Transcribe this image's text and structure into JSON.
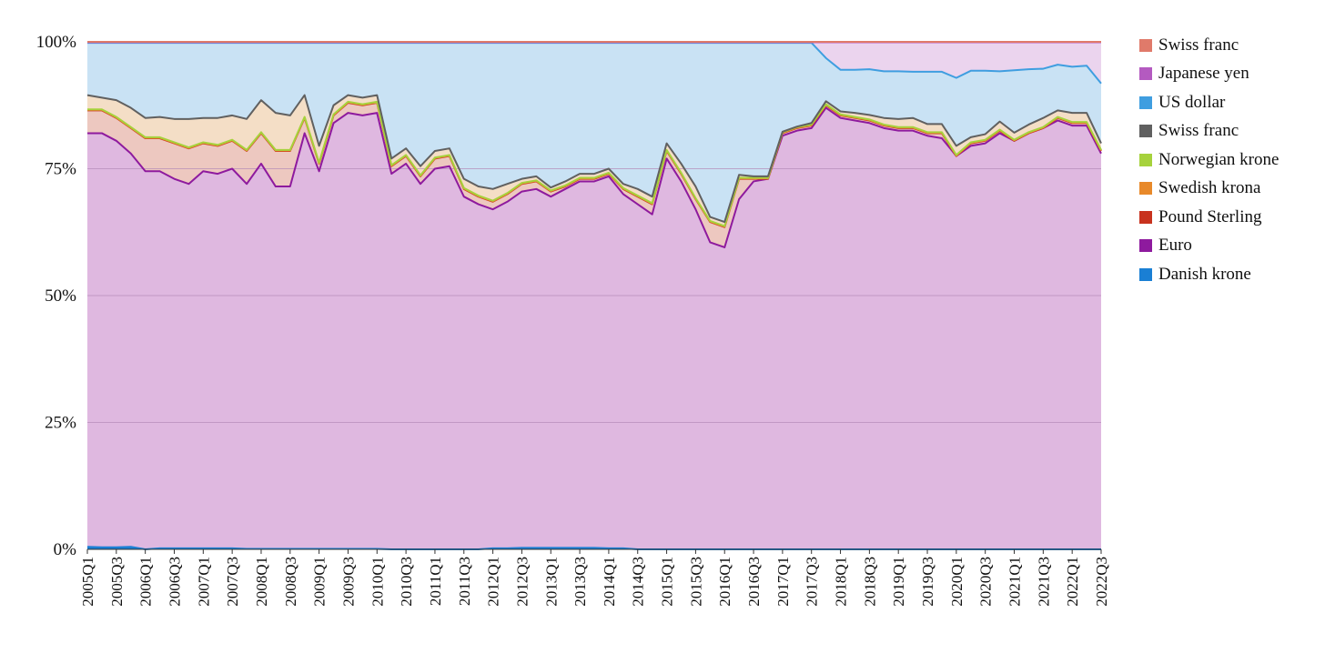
{
  "chart_data": {
    "type": "area",
    "stacked": true,
    "normalized": true,
    "title": "",
    "xlabel": "",
    "ylabel": "",
    "ylim": [
      0,
      100
    ],
    "y_ticks": [
      "0%",
      "25%",
      "50%",
      "75%",
      "100%"
    ],
    "x_tick_labels": [
      "2005Q1",
      "2005Q3",
      "2006Q1",
      "2006Q3",
      "2007Q1",
      "2007Q3",
      "2008Q1",
      "2008Q3",
      "2009Q1",
      "2009Q3",
      "2010Q1",
      "2010Q3",
      "2011Q1",
      "2011Q3",
      "2012Q1",
      "2012Q3",
      "2013Q1",
      "2013Q3",
      "2014Q1",
      "2014Q3",
      "2015Q1",
      "2015Q3",
      "2016Q1",
      "2016Q3",
      "2017Q1",
      "2017Q3",
      "2018Q1",
      "2018Q3",
      "2019Q1",
      "2019Q3",
      "2020Q1",
      "2020Q3",
      "2021Q1",
      "2021Q3",
      "2022Q1",
      "2022Q3"
    ],
    "grid": "horizontal",
    "legend_position": "right",
    "x": [
      "2005Q1",
      "2005Q2",
      "2005Q3",
      "2005Q4",
      "2006Q1",
      "2006Q2",
      "2006Q3",
      "2006Q4",
      "2007Q1",
      "2007Q2",
      "2007Q3",
      "2007Q4",
      "2008Q1",
      "2008Q2",
      "2008Q3",
      "2008Q4",
      "2009Q1",
      "2009Q2",
      "2009Q3",
      "2009Q4",
      "2010Q1",
      "2010Q2",
      "2010Q3",
      "2010Q4",
      "2011Q1",
      "2011Q2",
      "2011Q3",
      "2011Q4",
      "2012Q1",
      "2012Q2",
      "2012Q3",
      "2012Q4",
      "2013Q1",
      "2013Q2",
      "2013Q3",
      "2013Q4",
      "2014Q1",
      "2014Q2",
      "2014Q3",
      "2014Q4",
      "2015Q1",
      "2015Q2",
      "2015Q3",
      "2015Q4",
      "2016Q1",
      "2016Q2",
      "2016Q3",
      "2016Q4",
      "2017Q1",
      "2017Q2",
      "2017Q3",
      "2017Q4",
      "2018Q1",
      "2018Q2",
      "2018Q3",
      "2018Q4",
      "2019Q1",
      "2019Q2",
      "2019Q3",
      "2019Q4",
      "2020Q1",
      "2020Q2",
      "2020Q3",
      "2020Q4",
      "2021Q1",
      "2021Q2",
      "2021Q3",
      "2021Q4",
      "2022Q1",
      "2022Q2",
      "2022Q3"
    ],
    "stack_order": [
      "Danish krone",
      "Euro",
      "Pound Sterling",
      "Swedish krona",
      "Norwegian krone",
      "Swiss franc (2)",
      "US dollar",
      "Japanese yen",
      "Swiss franc (1)"
    ],
    "series": [
      {
        "name": "Danish krone",
        "color": "#1a7fd4",
        "fill": "#1a7fd4",
        "cumulative": [
          0.5,
          0.4,
          0.4,
          0.5,
          0,
          0.2,
          0.2,
          0.2,
          0.2,
          0.2,
          0.2,
          0.1,
          0.1,
          0.1,
          0.1,
          0.1,
          0.1,
          0.1,
          0.1,
          0.1,
          0.1,
          0,
          0,
          0,
          0,
          0,
          0,
          0,
          0.2,
          0.2,
          0.3,
          0.3,
          0.3,
          0.3,
          0.3,
          0.3,
          0.2,
          0.2,
          0,
          0,
          0,
          0,
          0,
          0,
          0,
          0,
          0,
          0,
          0,
          0,
          0,
          0,
          0,
          0,
          0,
          0,
          0,
          0,
          0,
          0,
          0,
          0,
          0,
          0,
          0,
          0,
          0,
          0,
          0,
          0,
          0
        ]
      },
      {
        "name": "Euro",
        "color": "#8e1a9e",
        "fill": "#dfb8e0",
        "cumulative": [
          82,
          82,
          80.5,
          78,
          74.5,
          74.5,
          73,
          72,
          74.5,
          74,
          75,
          72,
          76,
          71.5,
          71.5,
          82,
          74.5,
          84,
          86,
          85.5,
          86,
          74,
          76,
          72,
          75,
          75.5,
          69.5,
          68,
          67,
          68.5,
          70.5,
          71,
          69.5,
          71,
          72.5,
          72.5,
          73.5,
          70,
          68,
          66,
          77,
          72.5,
          67,
          60.5,
          59.5,
          69,
          72.5,
          73,
          81.5,
          82.5,
          83,
          87,
          85,
          84.5,
          84,
          83,
          82.5,
          82.5,
          81.5,
          81,
          77.5,
          79.5,
          80,
          82,
          80.5,
          82,
          83,
          84.5,
          83.5,
          83.5,
          78
        ]
      },
      {
        "name": "Pound Sterling",
        "color": "#c8321e",
        "fill": "#edc8c0",
        "cumulative": [
          86.5,
          86.5,
          85,
          83,
          81,
          81,
          80,
          79,
          80,
          79.5,
          80.5,
          78.5,
          82,
          78.5,
          78.5,
          85,
          76,
          85.5,
          88,
          87.5,
          88,
          75.5,
          77.5,
          73.5,
          77,
          77.5,
          71,
          69.5,
          68.5,
          70,
          72,
          72.5,
          70.5,
          71.5,
          73,
          73,
          74,
          71,
          69.5,
          68,
          78.5,
          74,
          69,
          64.5,
          63.5,
          73,
          73,
          73,
          82,
          83,
          83.5,
          87.5,
          85.5,
          85,
          84.5,
          83.5,
          83,
          83,
          82,
          82,
          77.5,
          80,
          80.5,
          82.5,
          80.5,
          82,
          83,
          85,
          84,
          84,
          78.5
        ]
      },
      {
        "name": "Swedish krona",
        "color": "#e8892a",
        "fill": "#f3dac0",
        "cumulative": [
          86.6,
          86.6,
          85.1,
          83.1,
          81.1,
          81.1,
          80.1,
          79.1,
          80.1,
          79.6,
          80.6,
          78.6,
          82.1,
          78.6,
          78.6,
          85.1,
          76.1,
          85.6,
          88.1,
          87.6,
          88.1,
          75.6,
          77.6,
          73.6,
          77.1,
          77.6,
          71.1,
          69.6,
          68.6,
          70.1,
          72.1,
          72.6,
          70.6,
          71.6,
          73.1,
          73.1,
          74.1,
          71.1,
          69.6,
          68.1,
          78.6,
          74.1,
          69.1,
          64.6,
          63.6,
          73.1,
          73.1,
          73.1,
          82.1,
          83.1,
          83.6,
          87.6,
          85.6,
          85.1,
          84.6,
          83.6,
          83.1,
          83.1,
          82.1,
          82.1,
          77.6,
          80.1,
          80.6,
          82.6,
          80.6,
          82.1,
          83.1,
          85.1,
          84.1,
          84.1,
          78.6
        ]
      },
      {
        "name": "Norwegian krone",
        "color": "#a6d23c",
        "fill": "#e2efc8",
        "cumulative": [
          86.7,
          86.7,
          85.2,
          83.2,
          81.2,
          81.2,
          80.2,
          79.2,
          80.2,
          79.7,
          80.7,
          78.7,
          82.2,
          78.7,
          78.7,
          85.2,
          76.2,
          85.7,
          88.2,
          87.7,
          88.2,
          75.7,
          77.7,
          73.7,
          77.2,
          77.7,
          71.2,
          69.7,
          68.7,
          70.2,
          72.2,
          72.7,
          70.7,
          71.7,
          73.2,
          73.2,
          74.2,
          71.2,
          69.7,
          68.2,
          78.7,
          74.2,
          69.2,
          64.7,
          63.7,
          73.2,
          73.2,
          73.2,
          82.2,
          83.2,
          83.7,
          87.7,
          85.7,
          85.2,
          84.7,
          83.7,
          83.2,
          83.2,
          82.2,
          82.2,
          77.7,
          80.2,
          80.7,
          82.7,
          80.7,
          82.2,
          83.2,
          85.2,
          84.2,
          84.2,
          78.7
        ]
      },
      {
        "name": "Swiss franc (2)",
        "legend": "Swiss franc",
        "color": "#606060",
        "fill": "#f4deC6",
        "cumulative": [
          89.5,
          89,
          88.5,
          87,
          85,
          85.2,
          84.8,
          84.8,
          85,
          85,
          85.5,
          84.8,
          88.5,
          86,
          85.5,
          89.5,
          79.5,
          87.5,
          89.5,
          89,
          89.5,
          77,
          79,
          75.5,
          78.5,
          79,
          73,
          71.5,
          71,
          72,
          73,
          73.5,
          71.3,
          72.5,
          74,
          74,
          75,
          72,
          71,
          69.5,
          80,
          76,
          71.5,
          65.5,
          64.5,
          73.8,
          73.5,
          73.5,
          82.3,
          83.3,
          84,
          88.3,
          86.3,
          86,
          85.6,
          85,
          84.8,
          85,
          83.8,
          83.8,
          79.5,
          81.2,
          81.8,
          84.3,
          82.1,
          83.7,
          85,
          86.5,
          86,
          86,
          80
        ]
      },
      {
        "name": "US dollar",
        "color": "#3f9ee0",
        "fill": "#c9e2f4",
        "cumulative": [
          99.8,
          99.8,
          99.8,
          99.8,
          99.8,
          99.8,
          99.8,
          99.8,
          99.8,
          99.8,
          99.8,
          99.8,
          99.8,
          99.8,
          99.8,
          99.8,
          99.8,
          99.8,
          99.8,
          99.8,
          99.8,
          99.8,
          99.8,
          99.8,
          99.8,
          99.8,
          99.8,
          99.8,
          99.8,
          99.8,
          99.8,
          99.8,
          99.8,
          99.8,
          99.8,
          99.8,
          99.8,
          99.8,
          99.8,
          99.8,
          99.8,
          99.8,
          99.8,
          99.8,
          99.8,
          99.8,
          99.8,
          99.8,
          99.8,
          99.8,
          99.8,
          96.8,
          94.5,
          94.5,
          94.6,
          94.2,
          94.2,
          94.1,
          94.1,
          94.1,
          92.9,
          94.3,
          94.3,
          94.2,
          94.4,
          94.6,
          94.7,
          95.5,
          95.1,
          95.3,
          91.8
        ]
      },
      {
        "name": "Japanese yen",
        "color": "#b45ac0",
        "fill": "#ebd4ee",
        "cumulative": [
          99.9,
          99.9,
          99.9,
          99.9,
          99.9,
          99.9,
          99.9,
          99.9,
          99.9,
          99.9,
          99.9,
          99.9,
          99.9,
          99.9,
          99.9,
          99.9,
          99.9,
          99.9,
          99.9,
          99.9,
          99.9,
          99.9,
          99.9,
          99.9,
          99.9,
          99.9,
          99.9,
          99.9,
          99.9,
          99.9,
          99.9,
          99.9,
          99.9,
          99.9,
          99.9,
          99.9,
          99.9,
          99.9,
          99.9,
          99.9,
          99.9,
          99.9,
          99.9,
          99.9,
          99.9,
          99.9,
          99.9,
          99.9,
          99.9,
          99.9,
          99.9,
          99.9,
          99.9,
          99.9,
          99.9,
          99.9,
          99.9,
          99.9,
          99.9,
          99.9,
          99.9,
          99.9,
          99.9,
          99.9,
          99.9,
          99.9,
          99.9,
          99.9,
          99.9,
          99.9,
          99.9
        ]
      },
      {
        "name": "Swiss franc (1)",
        "legend": "Swiss franc",
        "color": "#e07a6a",
        "fill": "#f2c8c0",
        "cumulative": [
          100,
          100,
          100,
          100,
          100,
          100,
          100,
          100,
          100,
          100,
          100,
          100,
          100,
          100,
          100,
          100,
          100,
          100,
          100,
          100,
          100,
          100,
          100,
          100,
          100,
          100,
          100,
          100,
          100,
          100,
          100,
          100,
          100,
          100,
          100,
          100,
          100,
          100,
          100,
          100,
          100,
          100,
          100,
          100,
          100,
          100,
          100,
          100,
          100,
          100,
          100,
          100,
          100,
          100,
          100,
          100,
          100,
          100,
          100,
          100,
          100,
          100,
          100,
          100,
          100,
          100,
          100,
          100,
          100,
          100,
          100
        ]
      }
    ],
    "legend": [
      {
        "label": "Swiss franc",
        "color": "#e07a6a"
      },
      {
        "label": "Japanese yen",
        "color": "#b45ac0"
      },
      {
        "label": "US dollar",
        "color": "#3f9ee0"
      },
      {
        "label": "Swiss franc",
        "color": "#606060"
      },
      {
        "label": "Norwegian krone",
        "color": "#a6d23c"
      },
      {
        "label": "Swedish krona",
        "color": "#e8892a"
      },
      {
        "label": "Pound Sterling",
        "color": "#c8321e"
      },
      {
        "label": "Euro",
        "color": "#8e1a9e"
      },
      {
        "label": "Danish krone",
        "color": "#1a7fd4"
      }
    ]
  }
}
